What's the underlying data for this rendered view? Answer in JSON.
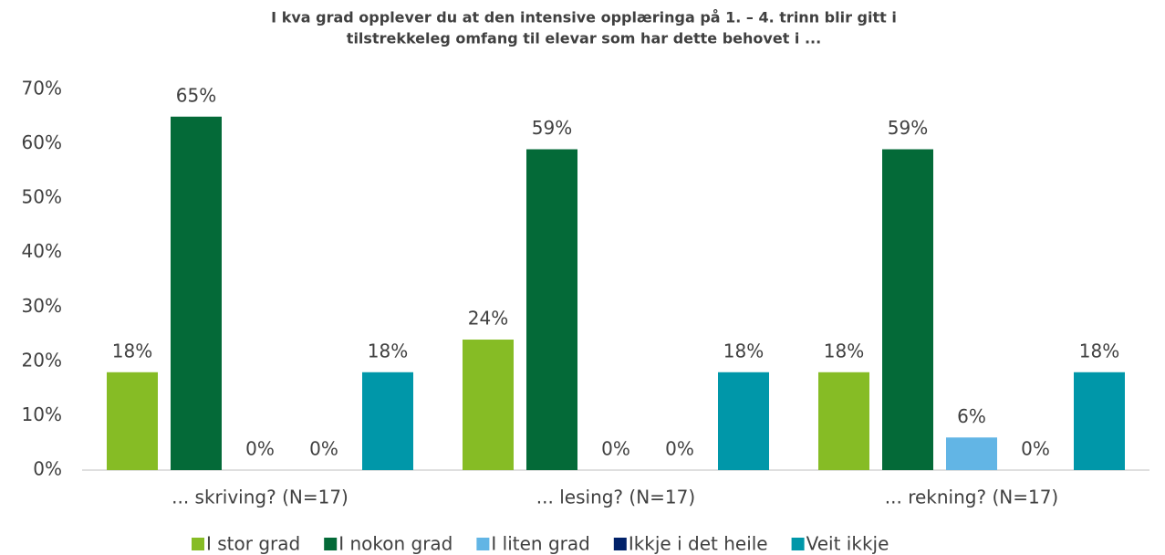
{
  "chart_data": {
    "type": "bar",
    "title": [
      "I kva grad opplever du at den intensive opplæringa på 1. – 4. trinn blir gitt i",
      "tilstrekkeleg omfang til elevar som har dette behovet i ..."
    ],
    "categories": [
      "... skriving? (N=17)",
      "... lesing? (N=17)",
      "... rekning? (N=17)"
    ],
    "series": [
      {
        "name": "I stor grad",
        "color": "#86bc25",
        "values": [
          18,
          24,
          18
        ],
        "value_labels": [
          "18%",
          "24%",
          "18%"
        ]
      },
      {
        "name": "I nokon grad",
        "color": "#046a38",
        "values": [
          65,
          59,
          59
        ],
        "value_labels": [
          "65%",
          "59%",
          "59%"
        ]
      },
      {
        "name": "I liten grad",
        "color": "#62b5e5",
        "values": [
          0,
          0,
          6
        ],
        "value_labels": [
          "0%",
          "0%",
          "6%"
        ]
      },
      {
        "name": "Ikkje i det heile",
        "color": "#012169",
        "values": [
          0,
          0,
          0
        ],
        "value_labels": [
          "0%",
          "0%",
          "0%"
        ]
      },
      {
        "name": "Veit ikkje",
        "color": "#0097a9",
        "values": [
          18,
          18,
          18
        ],
        "value_labels": [
          "18%",
          "18%",
          "18%"
        ]
      }
    ],
    "ylim": [
      0,
      70
    ],
    "yticks": [
      {
        "value": 0,
        "label": "0%"
      },
      {
        "value": 10,
        "label": "10%"
      },
      {
        "value": 20,
        "label": "20%"
      },
      {
        "value": 30,
        "label": "30%"
      },
      {
        "value": 40,
        "label": "40%"
      },
      {
        "value": 50,
        "label": "50%"
      },
      {
        "value": 60,
        "label": "60%"
      },
      {
        "value": 70,
        "label": "70%"
      }
    ],
    "grid": false,
    "legend": "bottom"
  }
}
